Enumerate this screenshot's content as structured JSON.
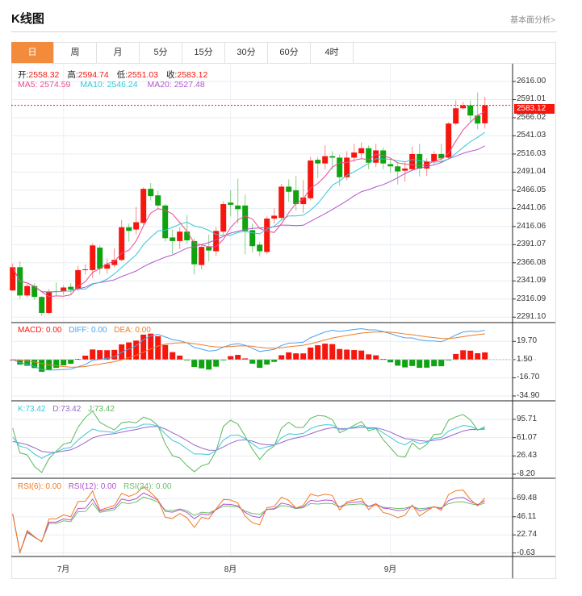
{
  "header": {
    "title": "K线图",
    "link": "基本面分析>"
  },
  "tabs": [
    {
      "label": "日",
      "active": true
    },
    {
      "label": "周"
    },
    {
      "label": "月"
    },
    {
      "label": "5分"
    },
    {
      "label": "15分"
    },
    {
      "label": "30分"
    },
    {
      "label": "60分"
    },
    {
      "label": "4时"
    }
  ],
  "legend": {
    "open_label": "开:",
    "open": "2558.32",
    "high_label": "高:",
    "high": "2594.74",
    "low_label": "低:",
    "low": "2551.03",
    "close_label": "收:",
    "close": "2583.12",
    "ma5": "MA5: 2574.59",
    "ma10": "MA10: 2546.24",
    "ma20": "MA20: 2527.48"
  },
  "macd_legend": {
    "macd": "MACD: 0.00",
    "diff": "DIFF: 0.00",
    "dea": "DEA: 0.00"
  },
  "kdj_legend": {
    "k": "K:73.42",
    "d": "D:73.42",
    "j": "J:73.42"
  },
  "rsi_legend": {
    "rsi6": "RSI(6): 0.00",
    "rsi12": "RSI(12): 0.00",
    "rsi24": "RSI(24): 0.00"
  },
  "last_price_tag": "2583.12",
  "chart_data": {
    "type": "candlestick",
    "title": "K线图",
    "candle_format": [
      "open",
      "high",
      "low",
      "close"
    ],
    "candles": [
      [
        2328,
        2365,
        2327,
        2360
      ],
      [
        2360,
        2368,
        2316,
        2321
      ],
      [
        2321,
        2337,
        2318,
        2334
      ],
      [
        2334,
        2338,
        2315,
        2319
      ],
      [
        2319,
        2320,
        2293,
        2297
      ],
      [
        2297,
        2330,
        2295,
        2326
      ],
      [
        2327,
        2339,
        2321,
        2326
      ],
      [
        2327,
        2335,
        2322,
        2332
      ],
      [
        2333,
        2338,
        2324,
        2329
      ],
      [
        2330,
        2362,
        2327,
        2356
      ],
      [
        2356,
        2364,
        2350,
        2357
      ],
      [
        2356,
        2393,
        2345,
        2390
      ],
      [
        2387,
        2390,
        2350,
        2358
      ],
      [
        2358,
        2372,
        2351,
        2364
      ],
      [
        2363,
        2386,
        2360,
        2370
      ],
      [
        2370,
        2425,
        2368,
        2415
      ],
      [
        2415,
        2420,
        2395,
        2410
      ],
      [
        2412,
        2443,
        2405,
        2422
      ],
      [
        2421,
        2470,
        2418,
        2468
      ],
      [
        2468,
        2476,
        2452,
        2458
      ],
      [
        2459,
        2465,
        2440,
        2445
      ],
      [
        2445,
        2447,
        2395,
        2400
      ],
      [
        2401,
        2412,
        2378,
        2396
      ],
      [
        2396,
        2415,
        2385,
        2409
      ],
      [
        2409,
        2432,
        2392,
        2397
      ],
      [
        2396,
        2400,
        2350,
        2364
      ],
      [
        2363,
        2390,
        2357,
        2388
      ],
      [
        2388,
        2405,
        2368,
        2383
      ],
      [
        2382,
        2415,
        2375,
        2410
      ],
      [
        2409,
        2451,
        2405,
        2447
      ],
      [
        2449,
        2466,
        2430,
        2446
      ],
      [
        2445,
        2482,
        2420,
        2440
      ],
      [
        2445,
        2460,
        2378,
        2410
      ],
      [
        2411,
        2420,
        2380,
        2389
      ],
      [
        2391,
        2395,
        2375,
        2382
      ],
      [
        2381,
        2430,
        2378,
        2427
      ],
      [
        2427,
        2441,
        2420,
        2431
      ],
      [
        2428,
        2475,
        2425,
        2471
      ],
      [
        2471,
        2481,
        2450,
        2464
      ],
      [
        2466,
        2486,
        2438,
        2447
      ],
      [
        2447,
        2480,
        2435,
        2456
      ],
      [
        2455,
        2512,
        2452,
        2507
      ],
      [
        2508,
        2512,
        2483,
        2503
      ],
      [
        2503,
        2528,
        2495,
        2513
      ],
      [
        2513,
        2520,
        2495,
        2511
      ],
      [
        2511,
        2515,
        2472,
        2484
      ],
      [
        2484,
        2520,
        2480,
        2511
      ],
      [
        2511,
        2530,
        2505,
        2518
      ],
      [
        2517,
        2532,
        2510,
        2524
      ],
      [
        2524,
        2528,
        2495,
        2504
      ],
      [
        2504,
        2530,
        2498,
        2521
      ],
      [
        2521,
        2525,
        2495,
        2503
      ],
      [
        2502,
        2510,
        2490,
        2499
      ],
      [
        2499,
        2505,
        2474,
        2492
      ],
      [
        2493,
        2505,
        2478,
        2496
      ],
      [
        2495,
        2526,
        2493,
        2516
      ],
      [
        2516,
        2530,
        2485,
        2496
      ],
      [
        2496,
        2510,
        2486,
        2506
      ],
      [
        2506,
        2520,
        2500,
        2516
      ],
      [
        2516,
        2530,
        2505,
        2510
      ],
      [
        2511,
        2560,
        2508,
        2558
      ],
      [
        2558,
        2590,
        2556,
        2579
      ],
      [
        2579,
        2588,
        2577,
        2583
      ],
      [
        2583,
        2590,
        2560,
        2569
      ],
      [
        2569,
        2601,
        2550,
        2558
      ],
      [
        2558.32,
        2594.74,
        2551.03,
        2583.12
      ]
    ],
    "price_ticks": [
      "2616.00",
      "2591.01",
      "2566.02",
      "2541.03",
      "2516.03",
      "2491.04",
      "2466.05",
      "2441.06",
      "2416.06",
      "2391.07",
      "2366.08",
      "2341.09",
      "2316.09",
      "2291.10"
    ],
    "macd_ticks": [
      "19.70",
      "1.50",
      "-16.70",
      "-34.90"
    ],
    "kdj_ticks": [
      "95.71",
      "61.07",
      "26.43",
      "-8.20"
    ],
    "rsi_ticks": [
      "69.48",
      "46.11",
      "22.74",
      "-0.63"
    ],
    "x_labels": [
      {
        "label": "7月",
        "index": 7
      },
      {
        "label": "8月",
        "index": 30
      },
      {
        "label": "9月",
        "index": 52
      }
    ],
    "last_price": 2583.12,
    "colors": {
      "up": "#f5160e",
      "down": "#0fa30f",
      "accent": "#f28c3c",
      "ma5": "#ee4b8c",
      "ma10": "#36c6d8",
      "ma20": "#b155cc",
      "diff": "#4aa3f0",
      "dea": "#f07b22",
      "k": "#3cc8d8",
      "d": "#9966cc",
      "j": "#5cb85c",
      "rsi6": "#f57a1e",
      "rsi12": "#b155cc",
      "rsi24": "#6cbf6c"
    }
  }
}
